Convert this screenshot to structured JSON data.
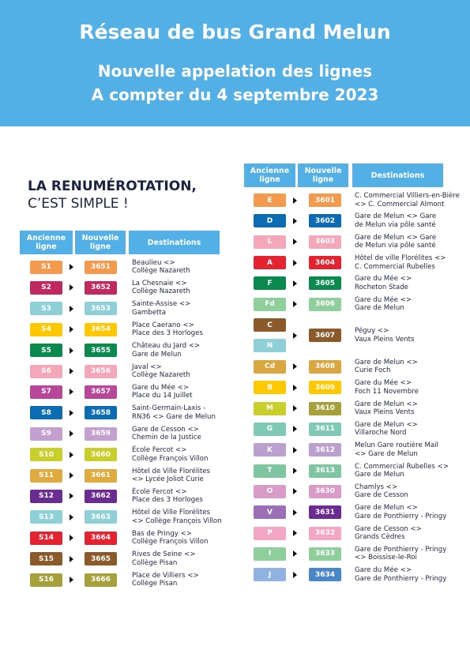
{
  "header": {
    "title": "Réseau de bus Grand Melun",
    "subtitle": [
      "Nouvelle appelation des lignes",
      "A compter du 4 septembre 2023"
    ]
  },
  "intro": {
    "line1": "LA RENUMÉROTATION,",
    "line2": "C’EST SIMPLE !"
  },
  "columns": {
    "old": "Ancienne ligne",
    "new": "Nouvelle ligne",
    "dest": "Destinations"
  },
  "left": [
    {
      "old": [
        {
          "code": "S1",
          "color": "#f39a4e"
        }
      ],
      "new": {
        "code": "3651",
        "color": "#f39a4e"
      },
      "dest": [
        "Beaulieu <>",
        "Collège Nazareth"
      ]
    },
    {
      "old": [
        {
          "code": "S2",
          "color": "#c1285e"
        }
      ],
      "new": {
        "code": "3652",
        "color": "#c1285e"
      },
      "dest": [
        "La Chesnaie  <>",
        "Collège Nazareth"
      ]
    },
    {
      "old": [
        {
          "code": "S3",
          "color": "#8fd0d8"
        }
      ],
      "new": {
        "code": "3653",
        "color": "#8fd0d8"
      },
      "dest": [
        "Sainte-Assise <>",
        "Gambetta"
      ]
    },
    {
      "old": [
        {
          "code": "S4",
          "color": "#ffc800"
        }
      ],
      "new": {
        "code": "3654",
        "color": "#ffc800"
      },
      "dest": [
        "Place Caerano <>",
        "Place des 3 Horloges"
      ]
    },
    {
      "old": [
        {
          "code": "S5",
          "color": "#0a8a4f"
        }
      ],
      "new": {
        "code": "3655",
        "color": "#0a8a4f"
      },
      "dest": [
        "Château du Jard  <>",
        "Gare de Melun"
      ]
    },
    {
      "old": [
        {
          "code": "S6",
          "color": "#f4a7b9"
        }
      ],
      "new": {
        "code": "3656",
        "color": "#f4a7b9"
      },
      "dest": [
        "Javal  <>",
        "Collège Nazareth"
      ]
    },
    {
      "old": [
        {
          "code": "S7",
          "color": "#b8479a"
        }
      ],
      "new": {
        "code": "3657",
        "color": "#b8479a"
      },
      "dest": [
        "Gare du Mée <>",
        "Place du 14 Juillet"
      ]
    },
    {
      "old": [
        {
          "code": "S8",
          "color": "#0b6cb4"
        }
      ],
      "new": {
        "code": "3658",
        "color": "#0b6cb4"
      },
      "dest": [
        "Saint-Germain-Laxis -",
        "RN36 <> Gare de Melun"
      ]
    },
    {
      "old": [
        {
          "code": "S9",
          "color": "#c3a0cf"
        }
      ],
      "new": {
        "code": "3659",
        "color": "#c3a0cf"
      },
      "dest": [
        "Gare de Cesson <>",
        "Chemin de la Justice"
      ]
    },
    {
      "old": [
        {
          "code": "S10",
          "color": "#c8cf2a"
        }
      ],
      "new": {
        "code": "3660",
        "color": "#c8cf2a"
      },
      "dest": [
        "École Fercot <>",
        "Collège François Villon"
      ]
    },
    {
      "old": [
        {
          "code": "S11",
          "color": "#e0aa3e"
        }
      ],
      "new": {
        "code": "3661",
        "color": "#e0aa3e"
      },
      "dest": [
        "Hôtel de Ville Florélites",
        "<> Lycée Joliot Curie"
      ]
    },
    {
      "old": [
        {
          "code": "S12",
          "color": "#6a2c91"
        }
      ],
      "new": {
        "code": "3662",
        "color": "#6a2c91"
      },
      "dest": [
        "École Fercot <>",
        "Place des 3 Horloges"
      ]
    },
    {
      "old": [
        {
          "code": "S13",
          "color": "#8fd0d8"
        }
      ],
      "new": {
        "code": "3663",
        "color": "#8fd0d8"
      },
      "dest": [
        "Hôtel de Ville Florélites",
        "<> Collège François Villon"
      ]
    },
    {
      "old": [
        {
          "code": "S14",
          "color": "#e52330"
        }
      ],
      "new": {
        "code": "3664",
        "color": "#e52330"
      },
      "dest": [
        "Bas de Pringy <>",
        "Collège François Villon"
      ]
    },
    {
      "old": [
        {
          "code": "S15",
          "color": "#8a5a2b"
        }
      ],
      "new": {
        "code": "3665",
        "color": "#8a5a2b"
      },
      "dest": [
        "Rives de Seine  <>",
        "Collège Pisan"
      ]
    },
    {
      "old": [
        {
          "code": "S16",
          "color": "#a6a03a"
        }
      ],
      "new": {
        "code": "3666",
        "color": "#a6a03a"
      },
      "dest": [
        "Place de Villiers <>",
        "Collège Pisan"
      ]
    }
  ],
  "right": [
    {
      "old": [
        {
          "code": "E",
          "color": "#f39a4e"
        }
      ],
      "new": {
        "code": "3601",
        "color": "#f39a4e"
      },
      "dest": [
        "C. Commercial Villiers-en-Bière",
        "<> C. Commercial Almont"
      ]
    },
    {
      "old": [
        {
          "code": "D",
          "color": "#0b6cb4"
        }
      ],
      "new": {
        "code": "3602",
        "color": "#0b6cb4"
      },
      "dest": [
        "Gare de Melun <> Gare",
        "de Melun via pôle santé"
      ]
    },
    {
      "old": [
        {
          "code": "L",
          "color": "#f4a7b9"
        }
      ],
      "new": {
        "code": "3603",
        "color": "#f4a7b9"
      },
      "dest": [
        "Gare de Melun <> Gare",
        "de Melun via pôle santé"
      ]
    },
    {
      "old": [
        {
          "code": "A",
          "color": "#e52330"
        }
      ],
      "new": {
        "code": "3604",
        "color": "#e52330"
      },
      "dest": [
        "Hôtel de ville Florélites <>",
        "C. Commercial Rubelles"
      ]
    },
    {
      "old": [
        {
          "code": "F",
          "color": "#0a8a4f"
        }
      ],
      "new": {
        "code": "3605",
        "color": "#0a8a4f"
      },
      "dest": [
        "Gare du Mée <>",
        "Rocheton Stade"
      ]
    },
    {
      "old": [
        {
          "code": "Fd",
          "color": "#8fcf9c"
        }
      ],
      "new": {
        "code": "3606",
        "color": "#8fcf9c"
      },
      "dest": [
        "Gare du Mée <>",
        "Gare de Melun"
      ]
    },
    {
      "old": [
        {
          "code": "C",
          "color": "#8a5a2b"
        },
        {
          "code": "N",
          "color": "#8fd0d8"
        }
      ],
      "new": {
        "code": "3607",
        "color": "#8a5a2b"
      },
      "dest": [
        "Péguy <>",
        "Vaux Pleins Vents"
      ]
    },
    {
      "old": [
        {
          "code": "Cd",
          "color": "#d9a640"
        }
      ],
      "new": {
        "code": "3608",
        "color": "#d9a640"
      },
      "dest": [
        "Gare de Melun <>",
        "Curie Foch"
      ]
    },
    {
      "old": [
        {
          "code": "B",
          "color": "#ffc800"
        }
      ],
      "new": {
        "code": "3609",
        "color": "#ffc800"
      },
      "dest": [
        "Gare du Mée <>",
        "Foch 11 Novembre"
      ]
    },
    {
      "old": [
        {
          "code": "M",
          "color": "#c8cf2a"
        }
      ],
      "new": {
        "code": "3610",
        "color": "#a6a03a"
      },
      "dest": [
        "Gare de Melun <>",
        "Vaux Pleins Vents"
      ]
    },
    {
      "old": [
        {
          "code": "G",
          "color": "#7fcab5"
        }
      ],
      "new": {
        "code": "3611",
        "color": "#7fcab5"
      },
      "dest": [
        "Gare de Melun <>",
        "Villaroche Nord"
      ]
    },
    {
      "old": [
        {
          "code": "K",
          "color": "#b9a0cf"
        }
      ],
      "new": {
        "code": "3612",
        "color": "#b9a0cf"
      },
      "dest": [
        "Melun Gare routière Mail",
        "<> Gare de Melun"
      ]
    },
    {
      "old": [
        {
          "code": "T",
          "color": "#7fc6a0"
        }
      ],
      "new": {
        "code": "3613",
        "color": "#7fc6a0"
      },
      "dest": [
        "C. Commercial Rubelles <>",
        "Gare de Melun"
      ]
    },
    {
      "old": [
        {
          "code": "O",
          "color": "#d99cc8"
        }
      ],
      "new": {
        "code": "3630",
        "color": "#d99cc8"
      },
      "dest": [
        "Chamlys <>",
        "Gare de Cesson"
      ]
    },
    {
      "old": [
        {
          "code": "V",
          "color": "#9b6fb6"
        }
      ],
      "new": {
        "code": "3631",
        "color": "#6a2c91"
      },
      "dest": [
        "Gare de Melun <>",
        "Gare de Ponthierry - Pringy"
      ]
    },
    {
      "old": [
        {
          "code": "P",
          "color": "#f4a7c4"
        }
      ],
      "new": {
        "code": "3632",
        "color": "#f4a7c4"
      },
      "dest": [
        "Gare de Cesson <>",
        "Grands Cèdres"
      ]
    },
    {
      "old": [
        {
          "code": "I",
          "color": "#8fcf9c"
        }
      ],
      "new": {
        "code": "3633",
        "color": "#8fcf9c"
      },
      "dest": [
        "Gare de Ponthierry - Pringy",
        "<> Boissise-le-Roi"
      ]
    },
    {
      "old": [
        {
          "code": "J",
          "color": "#8fb2e0"
        }
      ],
      "new": {
        "code": "3634",
        "color": "#4a86c8"
      },
      "dest": [
        "Gare du Mée <>",
        "Gare de Ponthierry - Pringy"
      ]
    }
  ]
}
